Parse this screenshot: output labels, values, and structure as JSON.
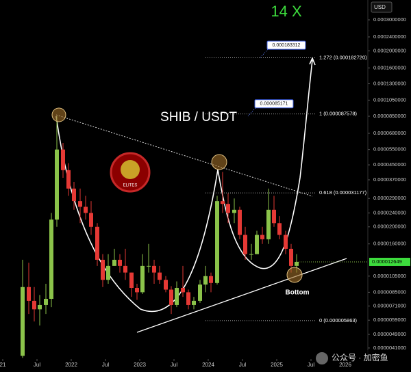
{
  "chart_data": {
    "type": "candlestick",
    "title": "SHIB / USDT",
    "annotation": "14 X",
    "currency": "USD",
    "bottom_label": "Bottom",
    "log_scale": true,
    "up_color": "#8bc34a",
    "down_color": "#e53935",
    "x": [
      2021.29,
      2021.38,
      2021.46,
      2021.54,
      2021.63,
      2021.71,
      2021.79,
      2021.88,
      2021.96,
      2022.04,
      2022.13,
      2022.21,
      2022.29,
      2022.38,
      2022.46,
      2022.54,
      2022.63,
      2022.71,
      2022.79,
      2022.88,
      2022.96,
      2023.04,
      2023.13,
      2023.21,
      2023.29,
      2023.38,
      2023.46,
      2023.54,
      2023.63,
      2023.71,
      2023.79,
      2023.88,
      2023.96,
      2024.04,
      2024.13,
      2024.21,
      2024.29,
      2024.38,
      2024.46,
      2024.54,
      2024.63,
      2024.71,
      2024.79,
      2024.88,
      2024.96,
      2025.04,
      2025.13,
      2025.21,
      2025.29
    ],
    "open": [
      3.7e-06,
      9.1e-06,
      7.6e-06,
      6.8e-06,
      7.2e-06,
      7.8e-06,
      2.2e-05,
      5.5e-05,
      4.2e-05,
      3.3e-05,
      2.8e-05,
      2.6e-05,
      2.4e-05,
      2e-05,
      1.3e-05,
      1e-05,
      1.2e-05,
      1.3e-05,
      1.2e-05,
      1.1e-05,
      9e-06,
      8.5e-06,
      1.2e-05,
      1.2e-05,
      1.1e-05,
      1e-05,
      8.8e-06,
      7.2e-06,
      9e-06,
      8.5e-06,
      7.2e-06,
      7.6e-06,
      9.4e-06,
      1.05e-05,
      9.6e-06,
      2.8e-05,
      2.7e-05,
      2.4e-05,
      2.5e-05,
      1.8e-05,
      1.4e-05,
      1.4e-05,
      1.8e-05,
      1.7e-05,
      2.5e-05,
      2.1e-05,
      1.8e-05,
      1.5e-05,
      1.2e-05
    ],
    "high": [
      1.3e-05,
      1.25e-05,
      9.1e-06,
      8.2e-06,
      9.5e-06,
      2.4e-05,
      8.5e-05,
      6e-05,
      4.6e-05,
      3.6e-05,
      3.3e-05,
      3e-05,
      2.8e-05,
      2.1e-05,
      1.4e-05,
      1.4e-05,
      1.5e-05,
      1.4e-05,
      1.5e-05,
      1.1e-05,
      9.5e-06,
      1.4e-05,
      1.6e-05,
      1.3e-05,
      1.2e-05,
      1.05e-05,
      9.2e-06,
      9.8e-06,
      1.2e-05,
      8.8e-06,
      8e-06,
      1e-05,
      1.2e-05,
      1.1e-05,
      3e-05,
      4.1e-05,
      3.1e-05,
      2.9e-05,
      2.6e-05,
      2e-05,
      1.6e-05,
      1.9e-05,
      2e-05,
      3.3e-05,
      3e-05,
      2.3e-05,
      1.9e-05,
      1.6e-05,
      1.4e-05
    ],
    "low": [
      3.6e-06,
      6.4e-06,
      5.8e-06,
      5.5e-06,
      6.4e-06,
      7e-06,
      2e-05,
      3.8e-05,
      3e-05,
      2.5e-05,
      2.1e-05,
      2.2e-05,
      1.8e-05,
      1.2e-05,
      9.1e-06,
      9.5e-06,
      1.2e-05,
      1.1e-05,
      1e-05,
      8e-06,
      7.7e-06,
      8.3e-06,
      1.1e-05,
      9.5e-06,
      9.5e-06,
      8.5e-06,
      6.4e-06,
      7e-06,
      8e-06,
      6.8e-06,
      6.8e-06,
      7.4e-06,
      8.5e-06,
      8.5e-06,
      9.4e-06,
      2.4e-05,
      2.1e-05,
      2.1e-05,
      1.7e-05,
      1.3e-05,
      1.3e-05,
      1.4e-05,
      1.6e-05,
      1.6e-05,
      2e-05,
      1.7e-05,
      1.4e-05,
      1.1e-05,
      1.1e-05
    ],
    "close": [
      9.1e-06,
      7.6e-06,
      6.8e-06,
      7.2e-06,
      7.8e-06,
      2.2e-05,
      5.5e-05,
      4.2e-05,
      3.3e-05,
      2.8e-05,
      2.6e-05,
      2.4e-05,
      2e-05,
      1.3e-05,
      1e-05,
      1.2e-05,
      1.3e-05,
      1.2e-05,
      1.1e-05,
      9e-06,
      8.5e-06,
      1.2e-05,
      1.2e-05,
      1.1e-05,
      1e-05,
      8.8e-06,
      7.2e-06,
      9e-06,
      8.5e-06,
      7.2e-06,
      7.6e-06,
      9.4e-06,
      1.05e-05,
      9.6e-06,
      2.8e-05,
      2.7e-05,
      2.4e-05,
      2.5e-05,
      1.8e-05,
      1.4e-05,
      1.4e-05,
      1.8e-05,
      1.7e-05,
      2.5e-05,
      2.1e-05,
      1.8e-05,
      1.5e-05,
      1.2e-05,
      1.2649e-05
    ],
    "xlim": [
      2020.96,
      2026.33
    ],
    "ylim": [
      3.55e-06,
      0.000389
    ],
    "xticks": [
      {
        "value": 2021,
        "label": "21"
      },
      {
        "value": 2021.5,
        "label": "Jul"
      },
      2022,
      {
        "value": 2022.5,
        "label": "Jul"
      },
      2023,
      {
        "value": 2023.5,
        "label": "Jul"
      },
      2024,
      {
        "value": 2024.5,
        "label": "Jul"
      },
      2025,
      {
        "value": 2025.5,
        "label": "Jul"
      },
      2026
    ],
    "yticks": [
      {
        "value": 0.0003,
        "label": "0.0003000000"
      },
      {
        "value": 0.00024,
        "label": "0.0002400000"
      },
      {
        "value": 0.0002,
        "label": "0.0002000000"
      },
      {
        "value": 0.00016,
        "label": "0.0001600000"
      },
      {
        "value": 0.00013,
        "label": "0.0001300000"
      },
      {
        "value": 0.000105,
        "label": "0.0001050000"
      },
      {
        "value": 8.5e-05,
        "label": "0.0000850000"
      },
      {
        "value": 6.8e-05,
        "label": "0.0000680000"
      },
      {
        "value": 5.5e-05,
        "label": "0.0000550000"
      },
      {
        "value": 4.5e-05,
        "label": "0.0000450000"
      },
      {
        "value": 3.7e-05,
        "label": "0.0000370000"
      },
      {
        "value": 2.9e-05,
        "label": "0.0000290000"
      },
      {
        "value": 2.4e-05,
        "label": "0.0000240000"
      },
      {
        "value": 2e-05,
        "label": "0.0000200000"
      },
      {
        "value": 1.6e-05,
        "label": "0.0000160000"
      },
      {
        "value": 1.05e-05,
        "label": "0.0000105000"
      },
      {
        "value": 8.5e-06,
        "label": "0.0000085000"
      },
      {
        "value": 7.1e-06,
        "label": "0.0000071000"
      },
      {
        "value": 5.9e-06,
        "label": "0.0000059000"
      },
      {
        "value": 4.9e-06,
        "label": "0.0000049000"
      },
      {
        "value": 4.1e-06,
        "label": "0.0000041000"
      }
    ],
    "fib_levels": [
      {
        "value": 0.00018272,
        "label": "1.272 (0.000182720)"
      },
      {
        "value": 8.7578e-05,
        "label": "1 (0.000087578)"
      },
      {
        "value": 3.1177e-05,
        "label": "0.618 (0.000031177)"
      },
      {
        "value": 5.863e-06,
        "label": "0 (0.000005863)"
      }
    ],
    "callouts": [
      0.000183312,
      8.5171e-05
    ]
  },
  "logo_text": "ELITES",
  "watermark": "公众号 · 加密鱼"
}
